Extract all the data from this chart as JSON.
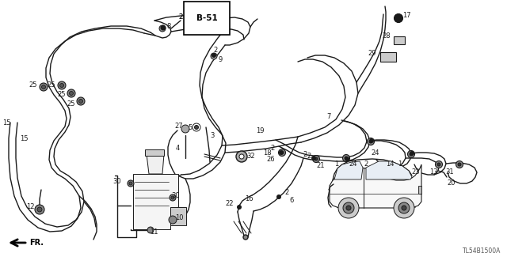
{
  "bg_color": "#ffffff",
  "diagram_code": "TL54B1500A",
  "b51_label": "B-51",
  "fr_label": "FR.",
  "line_color": "#1a1a1a",
  "figsize": [
    6.4,
    3.2
  ],
  "dpi": 100,
  "hose_lw": 1.0,
  "thin_lw": 0.7
}
